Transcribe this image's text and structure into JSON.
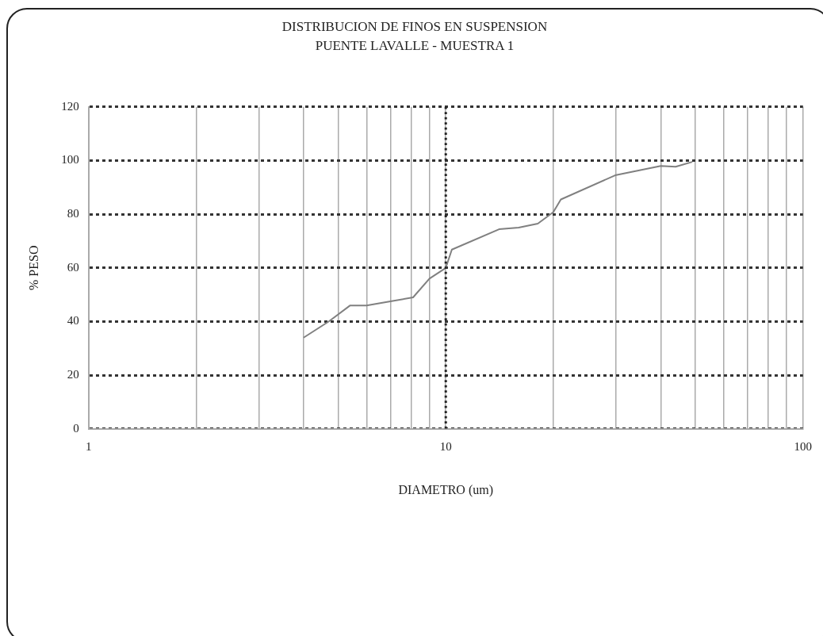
{
  "chart_data": {
    "type": "line",
    "title": "DISTRIBUCION DE FINOS EN SUSPENSION",
    "subtitle": "PUENTE LAVALLE - MUESTRA 1",
    "xlabel": "DIAMETRO (um)",
    "ylabel": "% PESO",
    "log": "x",
    "grid": true,
    "marker": "none",
    "line_style": "solid",
    "legend": false,
    "xlim": [
      1,
      100
    ],
    "xticks": [
      1,
      {
        "value": 2,
        "label": null
      },
      {
        "value": 3,
        "label": null
      },
      {
        "value": 4,
        "label": null
      },
      {
        "value": 5,
        "label": null
      },
      {
        "value": 6,
        "label": null
      },
      {
        "value": 7,
        "label": null
      },
      {
        "value": 8,
        "label": null
      },
      {
        "value": 9,
        "label": null
      },
      10,
      {
        "value": 20,
        "label": null
      },
      {
        "value": 30,
        "label": null
      },
      {
        "value": 40,
        "label": null
      },
      {
        "value": 50,
        "label": null
      },
      {
        "value": 60,
        "label": null
      },
      {
        "value": 70,
        "label": null
      },
      {
        "value": 80,
        "label": null
      },
      {
        "value": 90,
        "label": null
      },
      100
    ],
    "ref_lines": [
      {
        "axis": "x",
        "value": 10,
        "color": "#222222",
        "line_style": "dotted"
      }
    ],
    "ylim": [
      0,
      120
    ],
    "yticks": [
      0,
      20,
      40,
      60,
      80,
      100,
      120
    ],
    "series": [
      {
        "color": "#808080",
        "x": [
          4,
          4.7,
          5.4,
          6,
          7,
          8.1,
          9,
          10,
          10.4,
          14.1,
          16,
          18.1,
          20,
          21,
          29.8,
          40,
          44,
          49
        ],
        "values": [
          34,
          40,
          46,
          46,
          47.5,
          49,
          56,
          60,
          66.8,
          74.4,
          75,
          76.5,
          80.8,
          85.5,
          94.5,
          98,
          97.7,
          99.5
        ]
      }
    ]
  }
}
